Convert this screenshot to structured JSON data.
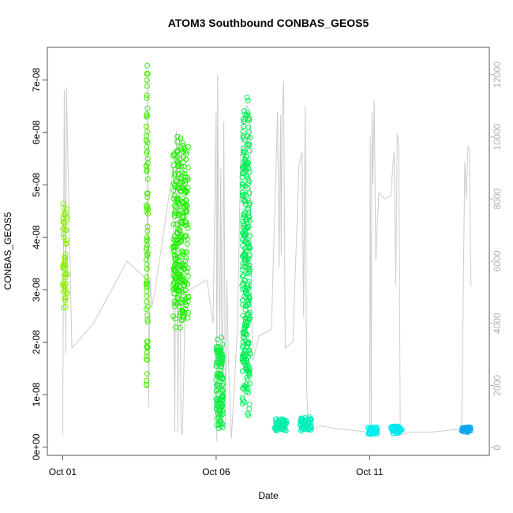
{
  "chart_data": {
    "type": "scatter",
    "title": "ATOM3 Southbound CONBAS_GEOS5",
    "xlabel": "Date",
    "ylabel": "CONBAS_GEOS5",
    "x_ticks": [
      "Oct 01",
      "Oct 06",
      "Oct 11"
    ],
    "y_ticks": [
      "0e+00",
      "1e-08",
      "2e-08",
      "3e-08",
      "4e-08",
      "5e-08",
      "6e-08",
      "7e-08"
    ],
    "y_ticks_right": [
      "0",
      "2000",
      "4000",
      "6000",
      "8000",
      "10000",
      "12000"
    ],
    "xlim_days": [
      0.5,
      14.9
    ],
    "ylim": [
      -1.6e-09,
      7.62e-08
    ],
    "ylim_right": [
      -250,
      12880
    ],
    "grid": false,
    "colors": {
      "gray_line": "#cccccc",
      "frame": "#555555",
      "right_axis": "#b0b0b0"
    },
    "altitude_series": {
      "name": "",
      "color": "#cccccc",
      "x_days": [
        1.0,
        1.05,
        1.1,
        1.12,
        1.3,
        2.0,
        3.1,
        3.75,
        3.77,
        3.8,
        3.85,
        3.9,
        4.0,
        4.6,
        4.65,
        4.7,
        4.72,
        4.75,
        4.8,
        4.85,
        4.9,
        5.0,
        5.7,
        5.9,
        6.0,
        6.02,
        6.05,
        6.08,
        6.12,
        6.15,
        6.2,
        6.25,
        6.3,
        6.35,
        6.4,
        6.5,
        6.7,
        6.8,
        6.9,
        7.0,
        7.1,
        7.15,
        7.2,
        7.3,
        7.4,
        7.8,
        8.0,
        8.05,
        8.1,
        8.12,
        8.15,
        8.2,
        8.25,
        8.5,
        8.7,
        8.8,
        8.85,
        8.9,
        8.95,
        9.0,
        9.2,
        9.4,
        10.0,
        11.0,
        11.02,
        11.05,
        11.08,
        11.1,
        11.15,
        11.2,
        11.3,
        11.5,
        11.7,
        11.75,
        11.8,
        11.85,
        11.9,
        11.95,
        12.0,
        12.3,
        13.0,
        14.0,
        14.1,
        14.15,
        14.2,
        14.25,
        14.3
      ],
      "y_values": [
        400,
        11500,
        3000,
        11600,
        3200,
        4000,
        6000,
        5400,
        12100,
        1300,
        5500,
        4500,
        5000,
        9000,
        500,
        10200,
        9800,
        500,
        10100,
        700,
        400,
        5000,
        5400,
        4000,
        10800,
        200,
        12000,
        6000,
        3500,
        9000,
        600,
        10500,
        700,
        5400,
        2800,
        300,
        4000,
        9500,
        10600,
        11000,
        10800,
        4500,
        2800,
        3200,
        3600,
        3800,
        10800,
        5800,
        10700,
        6200,
        10700,
        11800,
        3200,
        3400,
        9100,
        9500,
        4200,
        11000,
        1800,
        700,
        600,
        700,
        600,
        500,
        10000,
        700,
        10800,
        8500,
        11200,
        6000,
        8200,
        8000,
        8100,
        9000,
        9500,
        5200,
        10100,
        9700,
        400,
        500,
        500,
        600,
        9200,
        8000,
        9700,
        9600,
        5200
      ]
    },
    "series": [
      {
        "name": "",
        "color": "#88ee00",
        "x_range": [
          1.0,
          1.15
        ],
        "y_range": [
          2.5e-08,
          4.7e-08
        ],
        "n": 55
      },
      {
        "name": "",
        "color": "#44ee00",
        "x_range": [
          3.72,
          3.78
        ],
        "y_range": [
          1.05e-08,
          7.5e-08
        ],
        "n": 80
      },
      {
        "name": "",
        "color": "#22ee00",
        "x_range": [
          4.6,
          5.1
        ],
        "y_range": [
          2.2e-08,
          6e-08
        ],
        "n": 260
      },
      {
        "name": "",
        "color": "#11ee44",
        "x_range": [
          6.0,
          6.22
        ],
        "y_range": [
          3e-09,
          2.2e-08
        ],
        "n": 120
      },
      {
        "name": "",
        "color": "#00ee55",
        "x_range": [
          6.85,
          7.1
        ],
        "y_range": [
          5e-09,
          6.75e-08
        ],
        "n": 280
      },
      {
        "name": "",
        "color": "#00eeaa",
        "x_range": [
          7.9,
          8.3
        ],
        "y_range": [
          3e-09,
          5.5e-09
        ],
        "n": 60
      },
      {
        "name": "",
        "color": "#00eebb",
        "x_range": [
          8.75,
          9.1
        ],
        "y_range": [
          3e-09,
          6e-09
        ],
        "n": 60
      },
      {
        "name": "",
        "color": "#00eeee",
        "x_range": [
          10.95,
          11.25
        ],
        "y_range": [
          2.3e-09,
          3.8e-09
        ],
        "n": 50
      },
      {
        "name": "",
        "color": "#00e8ee",
        "x_range": [
          11.7,
          12.05
        ],
        "y_range": [
          2.5e-09,
          4e-09
        ],
        "n": 50
      },
      {
        "name": "",
        "color": "#0aa8ee",
        "x_range": [
          14.0,
          14.3
        ],
        "y_range": [
          2.8e-09,
          3.8e-09
        ],
        "n": 50
      }
    ]
  }
}
